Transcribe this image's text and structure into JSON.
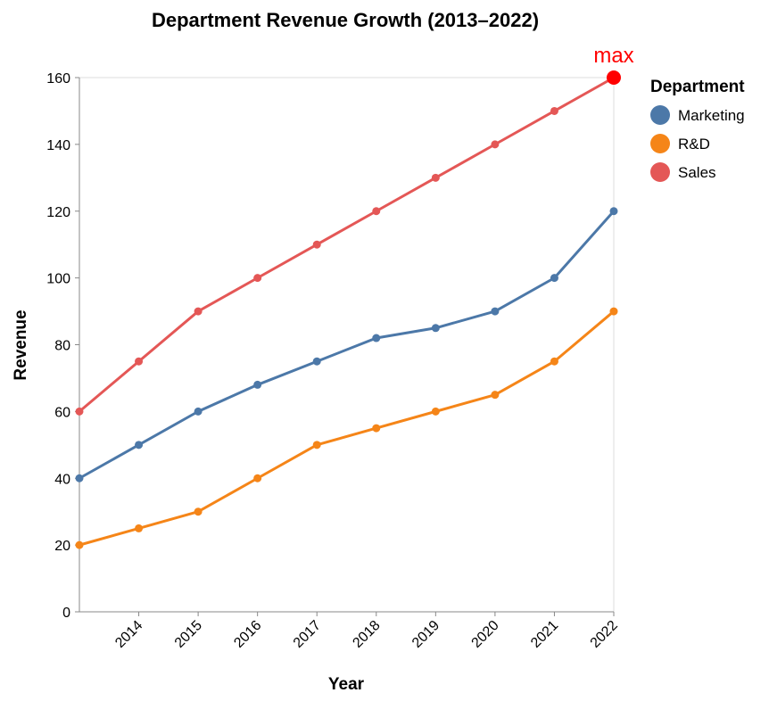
{
  "chart_data": {
    "type": "line",
    "title": "Department Revenue Growth (2013–2022)",
    "xlabel": "Year",
    "ylabel": "Revenue",
    "x": [
      2013,
      2014,
      2015,
      2016,
      2017,
      2018,
      2019,
      2020,
      2021,
      2022
    ],
    "x_tick_labels": [
      "2014",
      "2015",
      "2016",
      "2017",
      "2018",
      "2019",
      "2020",
      "2021",
      "2022"
    ],
    "y_ticks": [
      0,
      20,
      40,
      60,
      80,
      100,
      120,
      140,
      160
    ],
    "ylim": [
      0,
      160
    ],
    "grid": false,
    "legend": {
      "title": "Department",
      "position": "right"
    },
    "series": [
      {
        "name": "Marketing",
        "color": "#4c78a8",
        "values": [
          40,
          50,
          60,
          68,
          75,
          82,
          85,
          90,
          100,
          120
        ]
      },
      {
        "name": "R&D",
        "color": "#f58518",
        "values": [
          20,
          25,
          30,
          40,
          50,
          55,
          60,
          65,
          75,
          90
        ]
      },
      {
        "name": "Sales",
        "color": "#e45756",
        "values": [
          60,
          75,
          90,
          100,
          110,
          120,
          130,
          140,
          150,
          160
        ]
      }
    ],
    "annotation": {
      "text": "max",
      "x": 2022,
      "y": 160,
      "color": "#ff0000"
    }
  }
}
